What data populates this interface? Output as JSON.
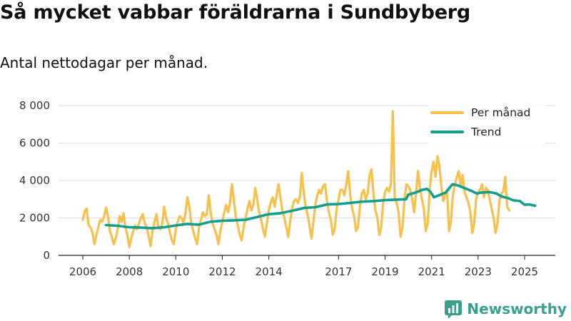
{
  "title": "Så mycket vabbar föräldrarna i Sundbyberg",
  "subtitle": "Antal nettodagar per månad.",
  "brand": "Newsworthy",
  "chart_data": {
    "type": "line",
    "title": "Så mycket vabbar föräldrarna i Sundbyberg",
    "subtitle": "Antal nettodagar per månad.",
    "ylim": [
      0,
      8000
    ],
    "xlim": [
      2005.75,
      2025.7
    ],
    "yticks": [
      0,
      2000,
      4000,
      6000,
      8000
    ],
    "ytick_labels": [
      "0",
      "2 000",
      "4 000",
      "6 000",
      "8 000"
    ],
    "xticks": [
      2006,
      2008,
      2010,
      2012,
      2014,
      2017,
      2019,
      2021,
      2023,
      2025
    ],
    "xtick_labels": [
      "2006",
      "2008",
      "2010",
      "2012",
      "2014",
      "2017",
      "2019",
      "2021",
      "2023",
      "2025"
    ],
    "legend_position": "top-right",
    "colors": {
      "per_month": "#f7c04a",
      "trend": "#139e8e"
    },
    "series": [
      {
        "name": "Per månad",
        "color": "#f7c04a",
        "start": [
          2006,
          1
        ],
        "values": [
          1900,
          2350,
          2500,
          1600,
          1500,
          1200,
          600,
          1100,
          1500,
          1900,
          1800,
          2100,
          2550,
          2100,
          1300,
          1000,
          600,
          900,
          1400,
          2100,
          1800,
          2250,
          1500,
          1100,
          450,
          900,
          1300,
          1600,
          1400,
          1700,
          2000,
          2200,
          1700,
          1500,
          1000,
          500,
          1300,
          1800,
          2200,
          1500,
          1400,
          1700,
          2600,
          2000,
          1700,
          1200,
          800,
          600,
          1400,
          1800,
          2100,
          2000,
          1700,
          2300,
          3100,
          2600,
          1700,
          1300,
          900,
          600,
          1500,
          1900,
          2300,
          2100,
          2200,
          3200,
          2300,
          1700,
          1400,
          1100,
          600,
          1300,
          1800,
          2300,
          2700,
          2300,
          2800,
          3800,
          2900,
          2000,
          1600,
          1100,
          800,
          1500,
          2000,
          2500,
          2900,
          2400,
          2700,
          3600,
          3000,
          2300,
          1900,
          1400,
          1000,
          1700,
          2400,
          2800,
          3100,
          2600,
          3200,
          3800,
          3100,
          2400,
          2000,
          1500,
          1000,
          1800,
          2500,
          2900,
          3000,
          2800,
          3100,
          4400,
          3400,
          2600,
          2200,
          1600,
          900,
          1800,
          2700,
          3200,
          3500,
          3300,
          3700,
          3800,
          2900,
          2300,
          1900,
          1100,
          1400,
          2500,
          3000,
          3500,
          3500,
          3200,
          3800,
          4500,
          3200,
          2500,
          2100,
          1300,
          1500,
          2600,
          3300,
          3500,
          3000,
          3300,
          4300,
          4600,
          3300,
          2400,
          2000,
          1100,
          1500,
          2800,
          3400,
          3600,
          3400,
          3800,
          7700,
          3000,
          2800,
          2300,
          1000,
          1500,
          3000,
          3800,
          3700,
          3500,
          3000,
          2300,
          3400,
          4500,
          3600,
          3000,
          2500,
          1300,
          1700,
          3500,
          4500,
          5000,
          4200,
          5300,
          4800,
          3700,
          2900,
          3200,
          3500,
          1300,
          1800,
          3200,
          3800,
          4200,
          4500,
          3700,
          4300,
          3400,
          3100,
          2800,
          2300,
          1200,
          1700,
          3000,
          3400,
          3500,
          3800,
          3100,
          3600,
          3500,
          3000,
          2500,
          2000,
          1200,
          1700,
          2900,
          3300,
          3400,
          4200,
          2600,
          2400
        ]
      },
      {
        "name": "Trend",
        "color": "#139e8e",
        "points": [
          [
            2007.0,
            1620
          ],
          [
            2007.5,
            1580
          ],
          [
            2008.0,
            1500
          ],
          [
            2008.5,
            1480
          ],
          [
            2009.0,
            1450
          ],
          [
            2009.5,
            1500
          ],
          [
            2010.0,
            1600
          ],
          [
            2010.5,
            1680
          ],
          [
            2011.0,
            1640
          ],
          [
            2011.5,
            1800
          ],
          [
            2012.0,
            1850
          ],
          [
            2012.5,
            1870
          ],
          [
            2013.0,
            1900
          ],
          [
            2013.5,
            2050
          ],
          [
            2014.0,
            2200
          ],
          [
            2014.5,
            2250
          ],
          [
            2015.0,
            2380
          ],
          [
            2015.5,
            2530
          ],
          [
            2016.0,
            2570
          ],
          [
            2016.5,
            2720
          ],
          [
            2017.0,
            2740
          ],
          [
            2017.5,
            2800
          ],
          [
            2018.0,
            2870
          ],
          [
            2018.5,
            2900
          ],
          [
            2019.0,
            2950
          ],
          [
            2019.5,
            2980
          ],
          [
            2019.9,
            3000
          ],
          [
            2020.0,
            3250
          ],
          [
            2020.3,
            3350
          ],
          [
            2020.6,
            3500
          ],
          [
            2020.8,
            3550
          ],
          [
            2020.95,
            3400
          ],
          [
            2021.1,
            3100
          ],
          [
            2021.4,
            3250
          ],
          [
            2021.6,
            3350
          ],
          [
            2021.8,
            3650
          ],
          [
            2021.9,
            3800
          ],
          [
            2022.1,
            3750
          ],
          [
            2022.5,
            3550
          ],
          [
            2022.7,
            3450
          ],
          [
            2022.95,
            3300
          ],
          [
            2023.1,
            3350
          ],
          [
            2023.5,
            3380
          ],
          [
            2023.8,
            3300
          ],
          [
            2024.0,
            3150
          ],
          [
            2024.3,
            3050
          ],
          [
            2024.5,
            2950
          ],
          [
            2024.8,
            2900
          ],
          [
            2025.0,
            2700
          ],
          [
            2025.2,
            2720
          ],
          [
            2025.45,
            2650
          ]
        ]
      }
    ]
  }
}
